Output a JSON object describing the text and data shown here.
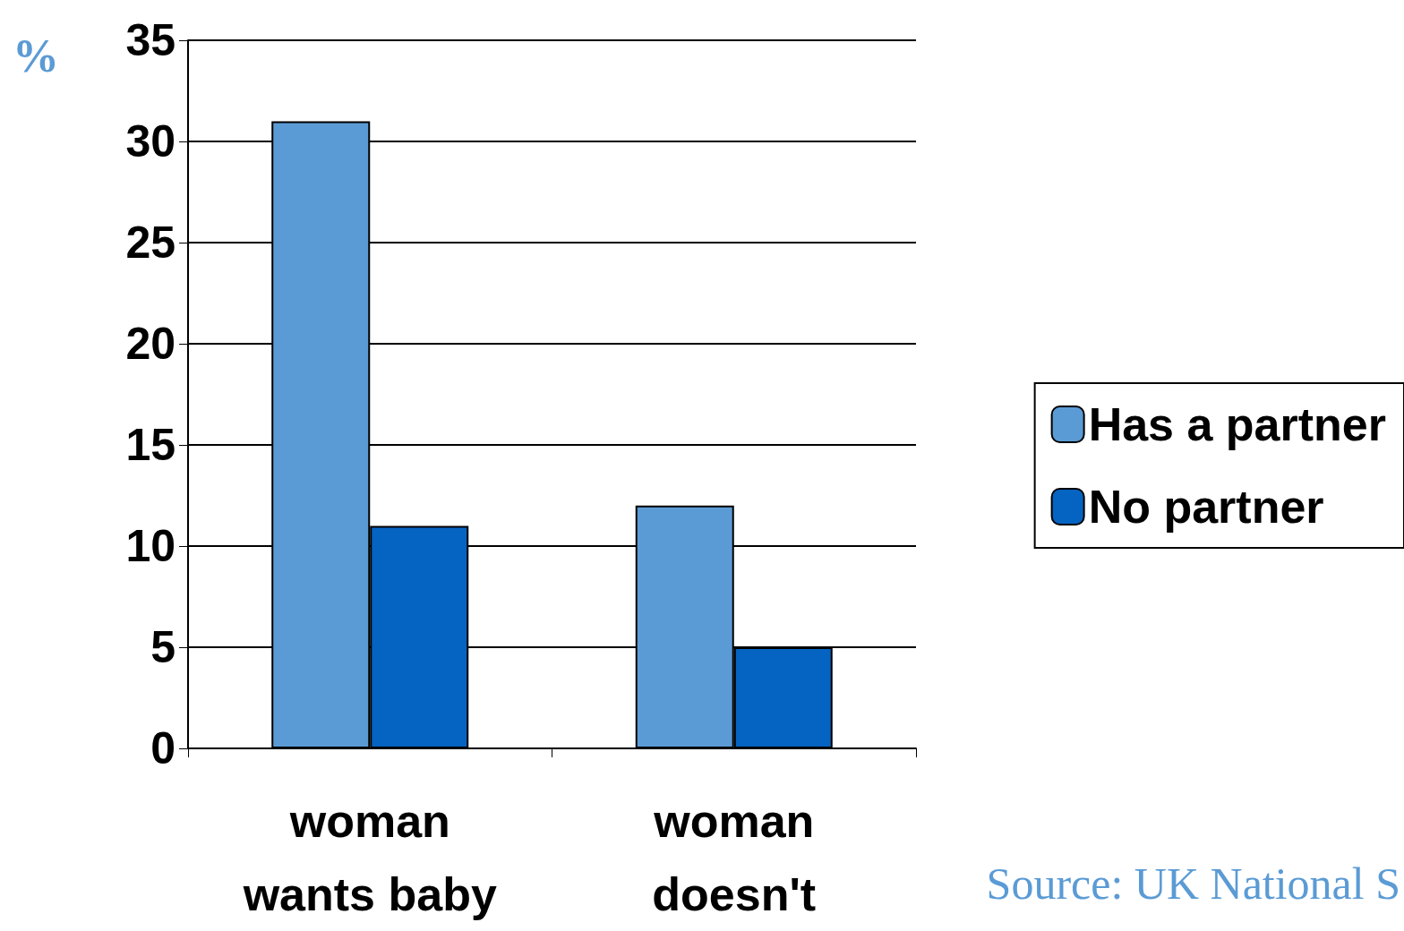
{
  "chart_data": {
    "type": "bar",
    "ylabel": "%",
    "categories": [
      "woman\nwants baby",
      "woman\ndoesn't"
    ],
    "series": [
      {
        "name": "Has a partner",
        "color": "#5b9bd5",
        "values": [
          31,
          12
        ]
      },
      {
        "name": "No partner",
        "color": "#0563c1",
        "values": [
          11,
          5
        ]
      }
    ],
    "ylim": [
      0,
      35
    ],
    "yticks": [
      0,
      5,
      10,
      15,
      20,
      25,
      30,
      35
    ],
    "grid": "y",
    "legend": "right",
    "annotations": [
      "Source: UK National S"
    ]
  }
}
